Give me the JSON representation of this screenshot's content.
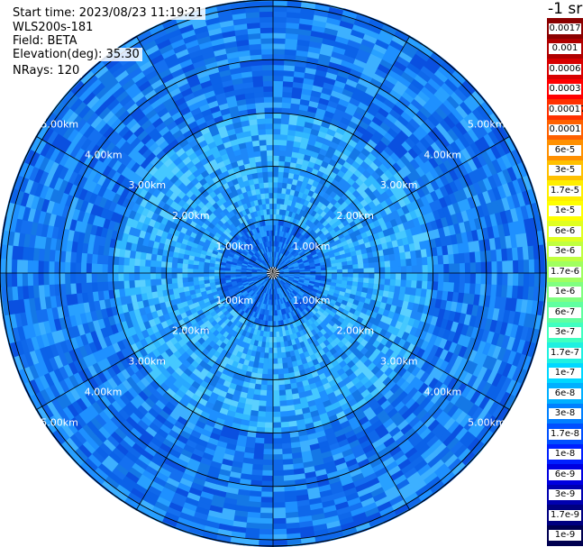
{
  "header": {
    "start_time": "Start time: 2023/08/23 11:19:21",
    "instrument": "WLS200s-181",
    "field": "Field: BETA",
    "elevation": "Elevation(deg): 35.30",
    "nrays": "NRays: 120"
  },
  "chart_data": {
    "type": "heatmap",
    "projection": "polar-ppi",
    "n_rays": 120,
    "range_rings_km": [
      1,
      2,
      3,
      4,
      5
    ],
    "range_max_km": 5.1,
    "ring_labels": [
      "1.00km",
      "2.00km",
      "3.00km",
      "4.00km",
      "5.00km"
    ],
    "azimuth_lines_deg": [
      0,
      30,
      60,
      90,
      120,
      150,
      180,
      210,
      240,
      270,
      300,
      330
    ],
    "grid": true,
    "colorbar": {
      "unit": "-1 sr",
      "labels": [
        "0.0017",
        "0.001",
        "0.0006",
        "0.0003",
        "0.00017",
        "0.0001",
        "6e-5",
        "3e-5",
        "1.7e-5",
        "1e-5",
        "6e-6",
        "3e-6",
        "1.7e-6",
        "1e-6",
        "6e-7",
        "3e-7",
        "1.7e-7",
        "1e-7",
        "6e-8",
        "3e-8",
        "1.7e-8",
        "1e-8",
        "6e-9",
        "3e-9",
        "1.7e-9",
        "1e-9"
      ],
      "colors": [
        "#8b0000",
        "#b00000",
        "#d80000",
        "#ff0000",
        "#ff3000",
        "#ff6000",
        "#ff9000",
        "#ffc000",
        "#ffee00",
        "#ffff00",
        "#e0ff20",
        "#c0ff40",
        "#a0ff60",
        "#80ff80",
        "#60ffa0",
        "#40ffc0",
        "#20f0e0",
        "#00d8ff",
        "#00b0ff",
        "#0080ff",
        "#0050ff",
        "#0020ff",
        "#0000e0",
        "#0000b0",
        "#000080",
        "#000050"
      ]
    },
    "field_summary": [
      {
        "range_km": [
          0,
          1.0
        ],
        "level": "1e-8 to 3e-8"
      },
      {
        "range_km": [
          1.0,
          3.0
        ],
        "level": "3e-8 to 6e-8"
      },
      {
        "range_km": [
          3.0,
          5.1
        ],
        "level": "1e-8 to 6e-8"
      }
    ]
  }
}
